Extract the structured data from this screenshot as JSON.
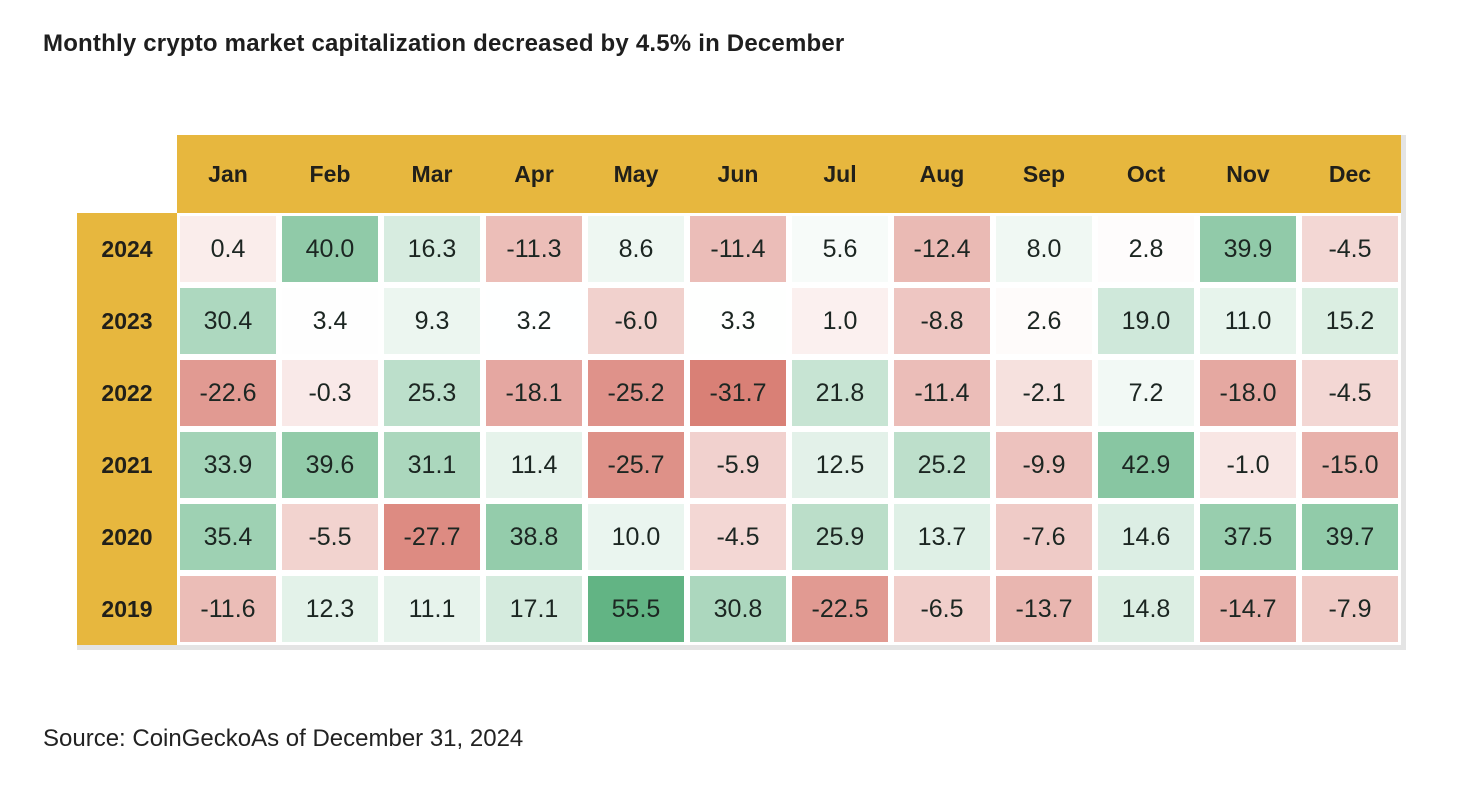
{
  "title": "Monthly crypto market capitalization decreased by 4.5% in December",
  "source": "Source: CoinGeckoAs of December 31, 2024",
  "colors": {
    "header_gold": "#E7B73E",
    "positive_green_max": "#62B484",
    "negative_red_max": "#D97F75",
    "cell_text": "#1C2622",
    "edge_gray": "#E4E4E4",
    "background": "#FFFFFF"
  },
  "chart_data": {
    "type": "heatmap",
    "title": "Monthly crypto market capitalization decreased by 4.5% in December",
    "columns": [
      "Jan",
      "Feb",
      "Mar",
      "Apr",
      "May",
      "Jun",
      "Jul",
      "Aug",
      "Sep",
      "Oct",
      "Nov",
      "Dec"
    ],
    "rows": [
      "2024",
      "2023",
      "2022",
      "2021",
      "2020",
      "2019"
    ],
    "series": [
      {
        "name": "2024",
        "values": [
          0.4,
          40.0,
          16.3,
          -11.3,
          8.6,
          -11.4,
          5.6,
          -12.4,
          8.0,
          2.8,
          39.9,
          -4.5
        ]
      },
      {
        "name": "2023",
        "values": [
          30.4,
          3.4,
          9.3,
          3.2,
          -6.0,
          3.3,
          1.0,
          -8.8,
          2.6,
          19.0,
          11.0,
          15.2
        ]
      },
      {
        "name": "2022",
        "values": [
          -22.6,
          -0.3,
          25.3,
          -18.1,
          -25.2,
          -31.7,
          21.8,
          -11.4,
          -2.1,
          7.2,
          -18.0,
          -4.5
        ]
      },
      {
        "name": "2021",
        "values": [
          33.9,
          39.6,
          31.1,
          11.4,
          -25.7,
          -5.9,
          12.5,
          25.2,
          -9.9,
          42.9,
          -1.0,
          -15.0
        ]
      },
      {
        "name": "2020",
        "values": [
          35.4,
          -5.5,
          -27.7,
          38.8,
          10.0,
          -4.5,
          25.9,
          13.7,
          -7.6,
          14.6,
          37.5,
          39.7
        ]
      },
      {
        "name": "2019",
        "values": [
          -11.6,
          12.3,
          11.1,
          17.1,
          55.5,
          30.8,
          -22.5,
          -6.5,
          -13.7,
          14.8,
          -14.7,
          -7.9
        ]
      }
    ],
    "value_range": [
      -31.7,
      55.5
    ],
    "value_decimals": 1,
    "legend": "none",
    "grid": "white gaps between cells; gold header row and gold year column"
  }
}
